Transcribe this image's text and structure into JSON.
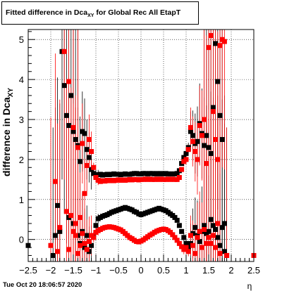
{
  "chart_data": {
    "type": "scatter",
    "title": "Fitted difference in Dca_XY for Global Rec All EtapT",
    "title_main": "Fitted difference in Dca",
    "title_sub": "XY",
    "title_tail": " for Global Rec All EtapT",
    "xlabel": "η",
    "ylabel": "difference in Dca",
    "ylabel_sub": "XY",
    "xlim": [
      -2.5,
      2.5
    ],
    "ylim": [
      -0.55,
      5.25
    ],
    "x_ticks": [
      -2.5,
      -2,
      -1.5,
      -1,
      -0.5,
      0,
      0.5,
      1,
      1.5,
      2,
      2.5
    ],
    "x_tick_labels": [
      "−2.5",
      "−2",
      "−1.5",
      "−1",
      "−0.5",
      "0",
      "0.5",
      "1",
      "1.5",
      "2",
      "2.5"
    ],
    "y_ticks": [
      0,
      1,
      2,
      3,
      4,
      5
    ],
    "y_tick_labels": [
      "0",
      "1",
      "2",
      "3",
      "4",
      "5"
    ],
    "grid": true,
    "series": [
      {
        "color": "#000000",
        "marker": "square",
        "points": [
          [
            -1.95,
            -0.4
          ],
          [
            -1.85,
            0.85
          ],
          [
            -1.8,
            0.2
          ],
          [
            -1.75,
            4.7
          ],
          [
            -1.7,
            3.85
          ],
          [
            -1.65,
            3.1
          ],
          [
            -1.6,
            2.85
          ],
          [
            -1.55,
            3.6
          ],
          [
            -1.5,
            2.7
          ],
          [
            -1.45,
            2.5
          ],
          [
            -1.4,
            2.35
          ],
          [
            -1.35,
            1.95
          ],
          [
            -1.3,
            2.7
          ],
          [
            -1.25,
            2.65
          ],
          [
            -1.2,
            2.25
          ],
          [
            -1.15,
            2.05
          ],
          [
            -1.1,
            1.75
          ],
          [
            -1.05,
            1.65
          ],
          [
            -1.0,
            1.62
          ],
          [
            -0.95,
            1.62
          ],
          [
            -0.9,
            1.63
          ],
          [
            -0.85,
            1.61
          ],
          [
            -0.8,
            1.62
          ],
          [
            -0.75,
            1.63
          ],
          [
            -0.7,
            1.62
          ],
          [
            -0.65,
            1.63
          ],
          [
            -0.6,
            1.64
          ],
          [
            -0.55,
            1.63
          ],
          [
            -0.5,
            1.63
          ],
          [
            -0.45,
            1.62
          ],
          [
            -0.4,
            1.63
          ],
          [
            -0.35,
            1.64
          ],
          [
            -0.3,
            1.63
          ],
          [
            -0.25,
            1.63
          ],
          [
            -0.2,
            1.64
          ],
          [
            -0.15,
            1.65
          ],
          [
            -0.1,
            1.65
          ],
          [
            -0.05,
            1.64
          ],
          [
            0.0,
            1.64
          ],
          [
            0.05,
            1.65
          ],
          [
            0.1,
            1.65
          ],
          [
            0.15,
            1.64
          ],
          [
            0.2,
            1.65
          ],
          [
            0.25,
            1.65
          ],
          [
            0.3,
            1.64
          ],
          [
            0.35,
            1.65
          ],
          [
            0.4,
            1.64
          ],
          [
            0.45,
            1.65
          ],
          [
            0.5,
            1.64
          ],
          [
            0.55,
            1.65
          ],
          [
            0.6,
            1.64
          ],
          [
            0.65,
            1.64
          ],
          [
            0.7,
            1.64
          ],
          [
            0.75,
            1.64
          ],
          [
            0.8,
            1.65
          ],
          [
            0.85,
            1.72
          ],
          [
            0.9,
            1.9
          ],
          [
            0.95,
            2.05
          ],
          [
            1.0,
            2.15
          ],
          [
            1.05,
            2.3
          ],
          [
            1.1,
            2.7
          ],
          [
            1.15,
            2.6
          ],
          [
            1.2,
            2.4
          ],
          [
            1.25,
            2.45
          ],
          [
            1.3,
            2.9
          ],
          [
            1.35,
            2.65
          ],
          [
            1.4,
            2.35
          ],
          [
            1.45,
            2.6
          ],
          [
            1.5,
            2.3
          ],
          [
            1.55,
            2.15
          ],
          [
            1.6,
            3.3
          ],
          [
            1.65,
            4.9
          ],
          [
            1.7,
            3.95
          ],
          [
            1.75,
            3.1
          ],
          [
            1.8,
            2.5
          ],
          [
            1.85,
            0.4
          ],
          [
            1.9,
            -0.4
          ],
          [
            -2.5,
            -0.15
          ],
          [
            -1.9,
            0.1
          ],
          [
            -1.6,
            0.55
          ],
          [
            -1.5,
            0.4
          ],
          [
            -1.4,
            0.1
          ],
          [
            -1.35,
            -0.1
          ],
          [
            -1.3,
            0.2
          ],
          [
            -1.25,
            -0.2
          ],
          [
            -1.2,
            0.1
          ],
          [
            -1.15,
            -0.3
          ],
          [
            -1.1,
            -0.15
          ],
          [
            -1.05,
            0.1
          ],
          [
            -1.0,
            0.35
          ],
          [
            -0.95,
            0.52
          ],
          [
            -0.9,
            0.55
          ],
          [
            -0.85,
            0.58
          ],
          [
            -0.8,
            0.6
          ],
          [
            -0.75,
            0.62
          ],
          [
            -0.7,
            0.65
          ],
          [
            -0.65,
            0.68
          ],
          [
            -0.6,
            0.7
          ],
          [
            -0.55,
            0.72
          ],
          [
            -0.5,
            0.74
          ],
          [
            -0.45,
            0.76
          ],
          [
            -0.4,
            0.78
          ],
          [
            -0.35,
            0.8
          ],
          [
            -0.3,
            0.78
          ],
          [
            -0.25,
            0.76
          ],
          [
            -0.2,
            0.74
          ],
          [
            -0.15,
            0.7
          ],
          [
            -0.1,
            0.68
          ],
          [
            -0.05,
            0.64
          ],
          [
            0.0,
            0.62
          ],
          [
            0.05,
            0.64
          ],
          [
            0.1,
            0.66
          ],
          [
            0.15,
            0.68
          ],
          [
            0.2,
            0.7
          ],
          [
            0.25,
            0.72
          ],
          [
            0.3,
            0.74
          ],
          [
            0.35,
            0.76
          ],
          [
            0.4,
            0.78
          ],
          [
            0.45,
            0.76
          ],
          [
            0.5,
            0.74
          ],
          [
            0.55,
            0.72
          ],
          [
            0.6,
            0.68
          ],
          [
            0.65,
            0.64
          ],
          [
            0.7,
            0.6
          ],
          [
            0.75,
            0.55
          ],
          [
            0.8,
            0.48
          ],
          [
            0.85,
            0.35
          ],
          [
            0.9,
            0.2
          ],
          [
            0.95,
            0.05
          ],
          [
            1.0,
            -0.1
          ],
          [
            1.05,
            -0.2
          ],
          [
            1.1,
            -0.1
          ],
          [
            1.15,
            0.15
          ],
          [
            1.2,
            0.3
          ],
          [
            1.25,
            0.1
          ],
          [
            1.3,
            -0.05
          ],
          [
            1.35,
            0.2
          ],
          [
            1.4,
            0.35
          ],
          [
            1.45,
            0.15
          ],
          [
            1.5,
            0.2
          ],
          [
            1.55,
            0.5
          ],
          [
            1.6,
            0.35
          ],
          [
            1.65,
            0.25
          ],
          [
            1.7,
            0.05
          ],
          [
            1.75,
            -0.15
          ],
          [
            1.8,
            0.3
          ],
          [
            1.85,
            -0.3
          ]
        ]
      },
      {
        "color": "#ff0000",
        "marker": "square",
        "points": [
          [
            -2.0,
            -0.15
          ],
          [
            -1.9,
            1.45
          ],
          [
            -1.8,
            0.3
          ],
          [
            -1.7,
            4.7
          ],
          [
            -1.65,
            0.7
          ],
          [
            -1.6,
            3.95
          ],
          [
            -1.55,
            0.6
          ],
          [
            -1.5,
            2.8
          ],
          [
            -1.45,
            0.1
          ],
          [
            -1.4,
            2.3
          ],
          [
            -1.35,
            0.55
          ],
          [
            -1.3,
            2.4
          ],
          [
            -1.25,
            1.15
          ],
          [
            -1.2,
            1.85
          ],
          [
            -1.15,
            2.5
          ],
          [
            -1.1,
            2.2
          ],
          [
            -1.05,
            1.8
          ],
          [
            -1.0,
            1.55
          ],
          [
            -0.95,
            1.48
          ],
          [
            -0.9,
            1.45
          ],
          [
            -0.85,
            1.47
          ],
          [
            -0.8,
            1.46
          ],
          [
            -0.75,
            1.48
          ],
          [
            -0.7,
            1.47
          ],
          [
            -0.65,
            1.48
          ],
          [
            -0.6,
            1.47
          ],
          [
            -0.55,
            1.48
          ],
          [
            -0.5,
            1.49
          ],
          [
            -0.45,
            1.48
          ],
          [
            -0.4,
            1.49
          ],
          [
            -0.35,
            1.48
          ],
          [
            -0.3,
            1.49
          ],
          [
            -0.25,
            1.5
          ],
          [
            -0.2,
            1.49
          ],
          [
            -0.15,
            1.5
          ],
          [
            -0.1,
            1.5
          ],
          [
            -0.05,
            1.49
          ],
          [
            0.0,
            1.5
          ],
          [
            0.05,
            1.5
          ],
          [
            0.1,
            1.51
          ],
          [
            0.15,
            1.5
          ],
          [
            0.2,
            1.51
          ],
          [
            0.25,
            1.5
          ],
          [
            0.3,
            1.5
          ],
          [
            0.35,
            1.51
          ],
          [
            0.4,
            1.5
          ],
          [
            0.45,
            1.51
          ],
          [
            0.5,
            1.5
          ],
          [
            0.55,
            1.5
          ],
          [
            0.6,
            1.51
          ],
          [
            0.65,
            1.5
          ],
          [
            0.7,
            1.51
          ],
          [
            0.75,
            1.5
          ],
          [
            0.8,
            1.5
          ],
          [
            0.85,
            1.55
          ],
          [
            0.9,
            1.75
          ],
          [
            0.95,
            1.95
          ],
          [
            1.0,
            2.0
          ],
          [
            1.05,
            2.25
          ],
          [
            1.1,
            2.8
          ],
          [
            1.15,
            2.45
          ],
          [
            1.2,
            2.2
          ],
          [
            1.25,
            2.0
          ],
          [
            1.3,
            2.85
          ],
          [
            1.35,
            2.6
          ],
          [
            1.4,
            3.0
          ],
          [
            1.45,
            1.9
          ],
          [
            1.5,
            4.8
          ],
          [
            1.55,
            5.1
          ],
          [
            1.6,
            3.2
          ],
          [
            1.65,
            2.5
          ],
          [
            1.7,
            2.0
          ],
          [
            1.75,
            4.85
          ],
          [
            1.8,
            5.0
          ],
          [
            1.85,
            4.95
          ],
          [
            1.9,
            -0.4
          ],
          [
            2.5,
            -0.4
          ],
          [
            -1.85,
            -0.3
          ],
          [
            -1.6,
            -0.25
          ],
          [
            -1.5,
            0.2
          ],
          [
            -1.45,
            0.4
          ],
          [
            -1.4,
            -0.35
          ],
          [
            -1.35,
            -0.15
          ],
          [
            -1.3,
            0.15
          ],
          [
            -1.25,
            -0.1
          ],
          [
            -1.2,
            -0.25
          ],
          [
            -1.15,
            -0.05
          ],
          [
            -1.1,
            0.1
          ],
          [
            -1.05,
            0.05
          ],
          [
            -1.0,
            0.18
          ],
          [
            -0.95,
            0.22
          ],
          [
            -0.9,
            0.25
          ],
          [
            -0.85,
            0.28
          ],
          [
            -0.8,
            0.3
          ],
          [
            -0.75,
            0.31
          ],
          [
            -0.7,
            0.32
          ],
          [
            -0.65,
            0.31
          ],
          [
            -0.6,
            0.3
          ],
          [
            -0.55,
            0.28
          ],
          [
            -0.5,
            0.26
          ],
          [
            -0.45,
            0.24
          ],
          [
            -0.4,
            0.2
          ],
          [
            -0.35,
            0.15
          ],
          [
            -0.3,
            0.1
          ],
          [
            -0.25,
            0.05
          ],
          [
            -0.2,
            0.02
          ],
          [
            -0.15,
            -0.02
          ],
          [
            -0.1,
            -0.05
          ],
          [
            -0.05,
            -0.06
          ],
          [
            0.0,
            -0.04
          ],
          [
            0.05,
            -0.01
          ],
          [
            0.1,
            0.03
          ],
          [
            0.15,
            0.07
          ],
          [
            0.2,
            0.11
          ],
          [
            0.25,
            0.14
          ],
          [
            0.3,
            0.18
          ],
          [
            0.35,
            0.21
          ],
          [
            0.4,
            0.23
          ],
          [
            0.45,
            0.25
          ],
          [
            0.5,
            0.26
          ],
          [
            0.55,
            0.25
          ],
          [
            0.6,
            0.22
          ],
          [
            0.65,
            0.18
          ],
          [
            0.7,
            0.12
          ],
          [
            0.75,
            0.05
          ],
          [
            0.8,
            -0.02
          ],
          [
            0.85,
            -0.1
          ],
          [
            0.9,
            -0.18
          ],
          [
            0.95,
            -0.25
          ],
          [
            1.0,
            -0.2
          ],
          [
            1.05,
            -0.3
          ],
          [
            1.1,
            0.1
          ],
          [
            1.15,
            -0.15
          ],
          [
            1.2,
            -0.35
          ],
          [
            1.25,
            0.05
          ],
          [
            1.3,
            0.2
          ],
          [
            1.35,
            -0.2
          ],
          [
            1.4,
            0.25
          ],
          [
            1.45,
            -0.1
          ],
          [
            1.5,
            0.05
          ],
          [
            1.55,
            -0.1
          ],
          [
            1.6,
            0.1
          ],
          [
            1.65,
            -0.2
          ],
          [
            1.7,
            0.4
          ],
          [
            1.75,
            -0.35
          ]
        ]
      }
    ],
    "footer_timestamp": "Tue Oct 20 18:06:57 2020"
  }
}
